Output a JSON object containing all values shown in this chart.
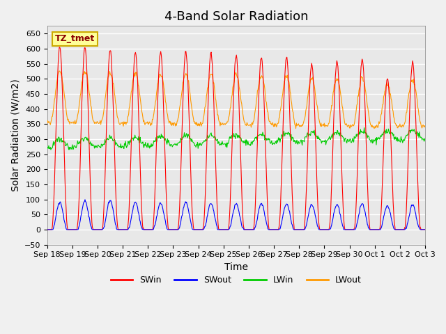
{
  "title": "4-Band Solar Radiation",
  "ylabel": "Solar Radiation (W/m2)",
  "xlabel": "Time",
  "annotation": "TZ_tmet",
  "ylim": [
    -50,
    675
  ],
  "series_colors": {
    "SWin": "#ff0000",
    "SWout": "#0000ff",
    "LWin": "#00cc00",
    "LWout": "#ff9900"
  },
  "x_tick_labels": [
    "Sep 18",
    "Sep 19",
    "Sep 20",
    "Sep 21",
    "Sep 22",
    "Sep 23",
    "Sep 24",
    "Sep 25",
    "Sep 26",
    "Sep 27",
    "Sep 28",
    "Sep 29",
    "Sep 30",
    "Oct 1",
    "Oct 2",
    "Oct 3"
  ],
  "num_days": 15,
  "swin_peaks": [
    605,
    605,
    595,
    590,
    588,
    590,
    583,
    576,
    571,
    572,
    548,
    558,
    565,
    500,
    555
  ],
  "swout_peaks": [
    90,
    95,
    96,
    90,
    88,
    90,
    87,
    86,
    86,
    85,
    82,
    83,
    85,
    78,
    82
  ],
  "lwin_base": 270,
  "lwout_base": 350,
  "background_color": "#e8e8e8",
  "grid_color": "#ffffff",
  "title_fontsize": 13,
  "label_fontsize": 10
}
